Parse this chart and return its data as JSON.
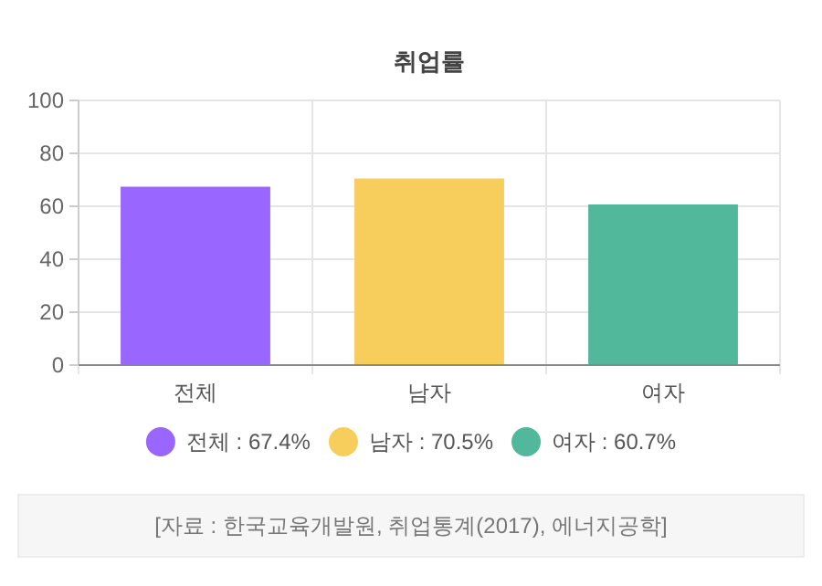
{
  "chart_data": {
    "type": "bar",
    "title": "취업률",
    "categories": [
      "전체",
      "남자",
      "여자"
    ],
    "series": [
      {
        "name": "전체 : 67.4%",
        "color": "#9966ff",
        "values": [
          67.4,
          null,
          null
        ]
      },
      {
        "name": "남자 : 70.5%",
        "color": "#f7cd5b",
        "values": [
          null,
          70.5,
          null
        ]
      },
      {
        "name": "여자 : 60.7%",
        "color": "#52b89c",
        "values": [
          null,
          null,
          60.7
        ]
      }
    ],
    "ylim": [
      0,
      100
    ],
    "yticks": [
      0,
      20,
      40,
      60,
      80,
      100
    ],
    "grid": true,
    "legend": "bottom",
    "annotations": [
      "[자료 : 한국교육개발원, 취업통계(2017), 에너지공학]"
    ]
  }
}
